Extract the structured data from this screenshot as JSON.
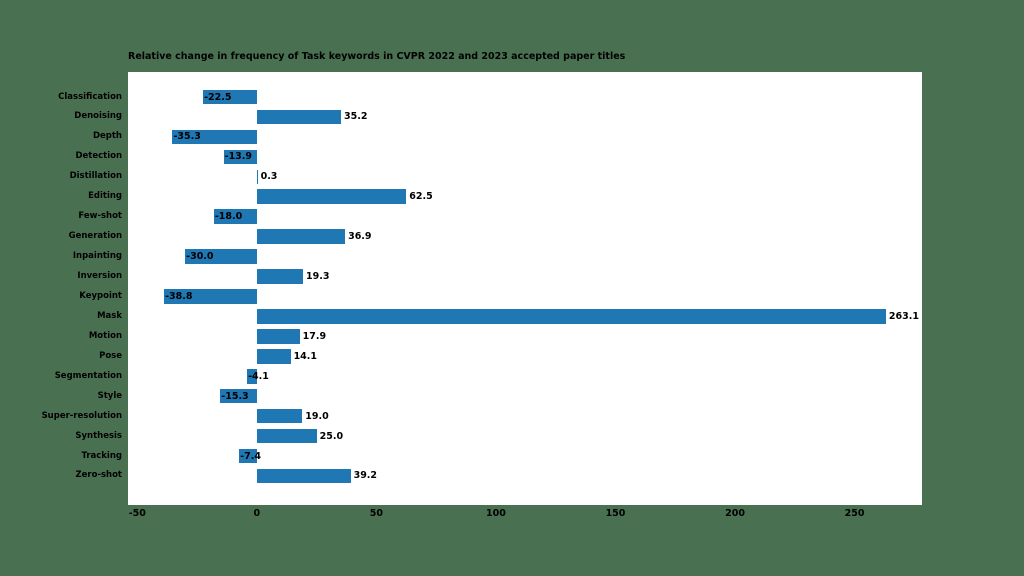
{
  "page": {
    "background_color": "#4a7052"
  },
  "chart_data": {
    "type": "bar",
    "orientation": "horizontal",
    "title": "Relative change in frequency of Task keywords in CVPR 2022 and 2023 accepted paper titles",
    "categories": [
      "Classification",
      "Denoising",
      "Depth",
      "Detection",
      "Distillation",
      "Editing",
      "Few-shot",
      "Generation",
      "Inpainting",
      "Inversion",
      "Keypoint",
      "Mask",
      "Motion",
      "Pose",
      "Segmentation",
      "Style",
      "Super-resolution",
      "Synthesis",
      "Tracking",
      "Zero-shot"
    ],
    "values": [
      -22.5,
      35.2,
      -35.3,
      -13.9,
      0.3,
      62.5,
      -18.0,
      36.9,
      -30.0,
      19.3,
      -38.8,
      263.1,
      17.9,
      14.1,
      -4.1,
      -15.3,
      19.0,
      25.0,
      -7.4,
      39.2
    ],
    "value_labels": [
      "-22.5",
      "35.2",
      "-35.3",
      "-13.9",
      "0.3",
      "62.5",
      "-18.0",
      "36.9",
      "-30.0",
      "19.3",
      "-38.8",
      "263.1",
      "17.9",
      "14.1",
      "-4.1",
      "-15.3",
      "19.0",
      "25.0",
      "-7.4",
      "39.2"
    ],
    "xticks": [
      "-50",
      "0",
      "50",
      "100",
      "150",
      "200",
      "250"
    ],
    "xtick_values": [
      -50,
      0,
      50,
      100,
      150,
      200,
      250
    ],
    "xlim": [
      -53.9,
      278.2
    ],
    "xlabel": "",
    "ylabel": "",
    "grid": false,
    "legend": null,
    "bar_color": "#1f77b4",
    "plot_background": "#ffffff",
    "text_color": "#000000"
  }
}
